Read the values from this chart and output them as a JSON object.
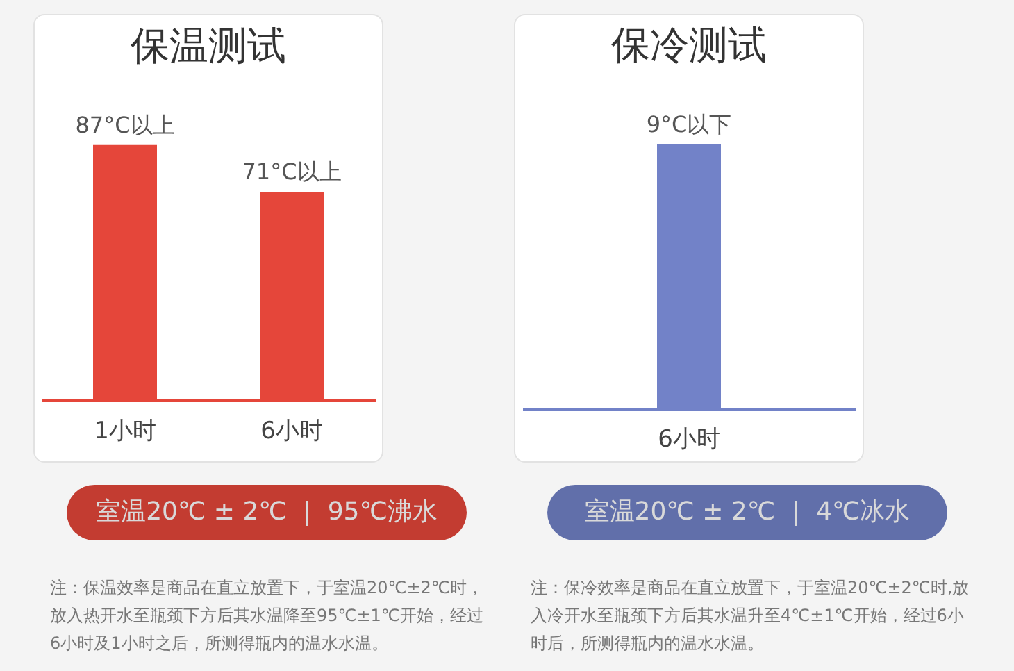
{
  "chart_data": [
    {
      "type": "bar",
      "title": "保温测试",
      "categories": [
        "1小时",
        "6小时"
      ],
      "values": [
        87,
        71
      ],
      "value_labels": [
        "87°C以上",
        "71°C以上"
      ],
      "color": "#e5463a",
      "annotations": [
        "室温20℃ ± 2℃ ｜ 95℃沸水",
        "注：保温效率是商品在直立放置下，于室温20℃±2℃时，放入热开水至瓶颈下方后其水温降至95℃±1℃开始，经过6小时及1小时之后，所测得瓶内的温水水温。"
      ]
    },
    {
      "type": "bar",
      "title": "保冷测试",
      "categories": [
        "6小时"
      ],
      "values": [
        9
      ],
      "value_labels": [
        "9°C以下"
      ],
      "color": "#7282c8",
      "annotations": [
        "室温20℃ ± 2℃ ｜ 4℃冰水",
        "注：保冷效率是商品在直立放置下，于室温20℃±2℃时,放入冷开水至瓶颈下方后其水温升至4℃±1℃开始，经过6小时后，所测得瓶内的温水水温。"
      ]
    }
  ]
}
